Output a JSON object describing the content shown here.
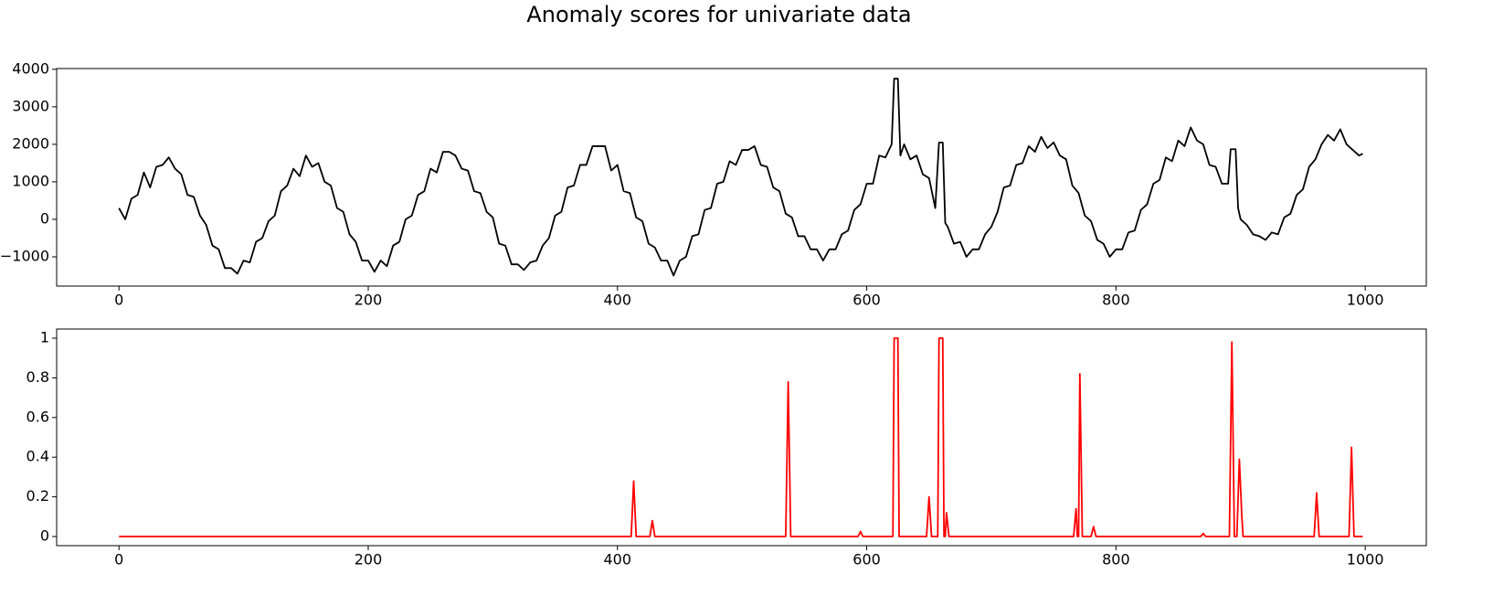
{
  "title": "Anomaly scores for univariate data",
  "chart_data": [
    {
      "type": "line",
      "color": "#000000",
      "x": [
        0,
        5,
        10,
        15,
        20,
        25,
        30,
        35,
        40,
        45,
        50,
        55,
        60,
        65,
        70,
        75,
        80,
        85,
        90,
        95,
        100,
        105,
        110,
        115,
        120,
        125,
        130,
        135,
        140,
        145,
        150,
        155,
        160,
        165,
        170,
        175,
        180,
        185,
        190,
        195,
        200,
        205,
        210,
        215,
        220,
        225,
        230,
        235,
        240,
        245,
        250,
        255,
        260,
        265,
        270,
        275,
        280,
        285,
        290,
        295,
        300,
        305,
        310,
        315,
        320,
        325,
        330,
        335,
        340,
        345,
        350,
        355,
        360,
        365,
        370,
        375,
        380,
        385,
        390,
        395,
        400,
        405,
        410,
        415,
        420,
        425,
        430,
        435,
        440,
        445,
        450,
        455,
        460,
        465,
        470,
        475,
        480,
        485,
        490,
        495,
        500,
        505,
        510,
        515,
        520,
        525,
        530,
        535,
        540,
        545,
        550,
        555,
        560,
        565,
        570,
        575,
        580,
        585,
        590,
        595,
        600,
        605,
        610,
        615,
        620,
        622,
        625,
        627,
        630,
        635,
        640,
        645,
        650,
        655,
        658,
        661,
        663,
        665,
        670,
        675,
        680,
        685,
        690,
        695,
        700,
        705,
        710,
        715,
        720,
        725,
        730,
        735,
        740,
        745,
        750,
        755,
        760,
        765,
        770,
        775,
        780,
        785,
        790,
        795,
        800,
        805,
        810,
        815,
        820,
        825,
        830,
        835,
        840,
        845,
        850,
        855,
        860,
        865,
        870,
        875,
        880,
        885,
        890,
        892,
        896,
        898,
        900,
        905,
        910,
        915,
        920,
        925,
        930,
        935,
        940,
        945,
        950,
        955,
        960,
        965,
        970,
        975,
        980,
        985,
        990,
        995,
        998
      ],
      "values": [
        300,
        0,
        550,
        650,
        1250,
        850,
        1400,
        1450,
        1650,
        1350,
        1200,
        650,
        600,
        100,
        -150,
        -700,
        -800,
        -1300,
        -1300,
        -1450,
        -1100,
        -1150,
        -600,
        -500,
        -50,
        100,
        750,
        900,
        1350,
        1150,
        1700,
        1400,
        1500,
        1000,
        900,
        300,
        200,
        -400,
        -600,
        -1100,
        -1100,
        -1400,
        -1100,
        -1250,
        -700,
        -600,
        0,
        100,
        650,
        750,
        1350,
        1250,
        1800,
        1800,
        1700,
        1350,
        1300,
        750,
        700,
        200,
        50,
        -650,
        -700,
        -1200,
        -1200,
        -1350,
        -1150,
        -1100,
        -700,
        -500,
        100,
        200,
        850,
        900,
        1450,
        1450,
        1950,
        1950,
        1950,
        1300,
        1450,
        750,
        700,
        50,
        -50,
        -650,
        -750,
        -1100,
        -1100,
        -1500,
        -1100,
        -1000,
        -450,
        -400,
        250,
        300,
        950,
        1000,
        1550,
        1450,
        1850,
        1850,
        1950,
        1450,
        1400,
        850,
        750,
        150,
        50,
        -450,
        -450,
        -800,
        -800,
        -1100,
        -800,
        -800,
        -400,
        -300,
        250,
        400,
        950,
        950,
        1700,
        1650,
        2000,
        3750,
        3750,
        1700,
        2000,
        1600,
        1700,
        1200,
        1100,
        300,
        2050,
        2050,
        -100,
        -200,
        -650,
        -600,
        -1000,
        -800,
        -800,
        -400,
        -200,
        200,
        850,
        900,
        1450,
        1500,
        1950,
        1800,
        2200,
        1900,
        2050,
        1700,
        1600,
        900,
        700,
        100,
        -50,
        -550,
        -650,
        -1000,
        -800,
        -800,
        -350,
        -300,
        250,
        400,
        950,
        1050,
        1650,
        1550,
        2100,
        1950,
        2450,
        2100,
        2000,
        1450,
        1400,
        950,
        950,
        1870,
        1870,
        300,
        0,
        -150,
        -400,
        -450,
        -550,
        -350,
        -400,
        50,
        150,
        650,
        800,
        1400,
        1600,
        2000,
        2250,
        2100,
        2400,
        2000,
        1850,
        1700,
        1750
      ],
      "xlim": [
        -50,
        1049
      ],
      "ylim": [
        -1780,
        4020
      ],
      "xticks": [
        0,
        200,
        400,
        600,
        800,
        1000
      ],
      "yticks": [
        {
          "value": -1000,
          "label": "−1000"
        },
        0,
        1000,
        2000,
        3000,
        4000
      ]
    },
    {
      "type": "line",
      "color": "#ff0000",
      "x": [
        0,
        411,
        413,
        415,
        426,
        428,
        430,
        535,
        537,
        539,
        593,
        595,
        597,
        621,
        622,
        625,
        626,
        648,
        650,
        652,
        657,
        658,
        661,
        662,
        663,
        664,
        666,
        766,
        768,
        769,
        770,
        771,
        773,
        780,
        782,
        784,
        868,
        870,
        872,
        891,
        893,
        895,
        897,
        899,
        901,
        902,
        959,
        961,
        963,
        987,
        989,
        991,
        998
      ],
      "values": [
        0,
        0,
        0.28,
        0,
        0,
        0.08,
        0,
        0,
        0.78,
        0,
        0,
        0.025,
        0,
        0,
        1,
        1,
        0,
        0,
        0.2,
        0,
        0,
        1,
        1,
        0,
        0,
        0.12,
        0,
        0,
        0.14,
        0,
        0,
        0.82,
        0,
        0,
        0.05,
        0,
        0,
        0.015,
        0,
        0,
        0.98,
        0,
        0,
        0.39,
        0.1,
        0,
        0,
        0.22,
        0,
        0,
        0.45,
        0,
        0
      ],
      "xlim": [
        -50,
        1049
      ],
      "ylim": [
        -0.046,
        1.046
      ],
      "xticks": [
        0,
        200,
        400,
        600,
        800,
        1000
      ],
      "yticks": [
        0.0,
        0.2,
        0.4,
        0.6,
        0.8,
        1.0
      ]
    }
  ]
}
